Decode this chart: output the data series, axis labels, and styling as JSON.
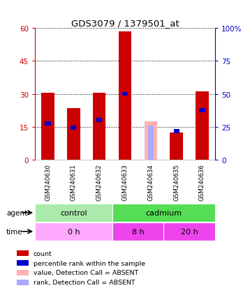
{
  "title": "GDS3079 / 1379501_at",
  "samples": [
    "GSM240630",
    "GSM240631",
    "GSM240632",
    "GSM240633",
    "GSM240634",
    "GSM240635",
    "GSM240636"
  ],
  "count_values": [
    30.5,
    23.5,
    30.5,
    58.5,
    0,
    12.5,
    31.0
  ],
  "rank_values": [
    16.5,
    14.5,
    18.0,
    30.0,
    0,
    13.0,
    22.5
  ],
  "absent_count": [
    0,
    0,
    0,
    0,
    17.5,
    0,
    0
  ],
  "absent_rank": [
    0,
    0,
    0,
    0,
    15.5,
    0,
    0
  ],
  "is_absent": [
    false,
    false,
    false,
    false,
    true,
    false,
    false
  ],
  "ylim_left": [
    0,
    60
  ],
  "ylim_right": [
    0,
    100
  ],
  "yticks_left": [
    0,
    15,
    30,
    45,
    60
  ],
  "yticks_right": [
    0,
    25,
    50,
    75,
    100
  ],
  "ytick_labels_right": [
    "0",
    "25",
    "50",
    "75",
    "100%"
  ],
  "agent_groups": [
    {
      "label": "control",
      "start": 0,
      "end": 3,
      "color": "#aaeaaa"
    },
    {
      "label": "cadmium",
      "start": 3,
      "end": 7,
      "color": "#55dd55"
    }
  ],
  "time_groups": [
    {
      "label": "0 h",
      "start": 0,
      "end": 3,
      "color": "#ffaaff"
    },
    {
      "label": "8 h",
      "start": 3,
      "end": 5,
      "color": "#ee44ee"
    },
    {
      "label": "20 h",
      "start": 5,
      "end": 7,
      "color": "#ee44ee"
    }
  ],
  "bar_width": 0.5,
  "count_color": "#CC0000",
  "rank_color": "#0000CC",
  "absent_count_color": "#FFB3B3",
  "absent_rank_color": "#AAAAFF",
  "bg_color": "#FFFFFF",
  "tick_label_bg": "#CCCCCC",
  "legend_items": [
    {
      "label": "count",
      "color": "#CC0000"
    },
    {
      "label": "percentile rank within the sample",
      "color": "#0000CC"
    },
    {
      "label": "value, Detection Call = ABSENT",
      "color": "#FFB3B3"
    },
    {
      "label": "rank, Detection Call = ABSENT",
      "color": "#AAAAFF"
    }
  ]
}
